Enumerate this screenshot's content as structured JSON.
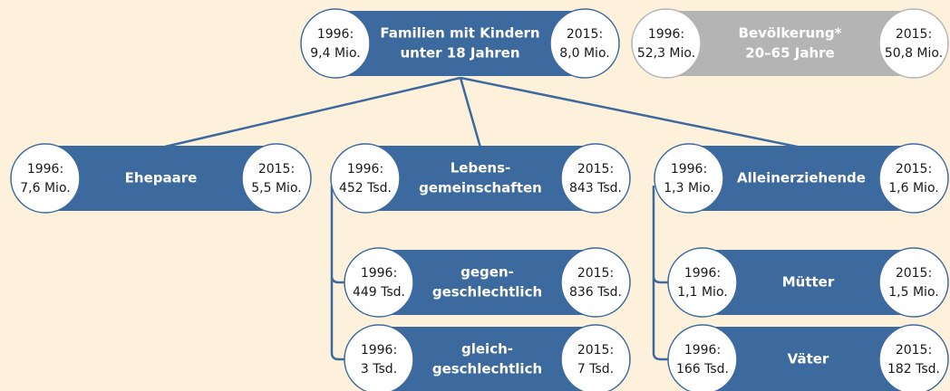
{
  "nodes": [
    {
      "label": [
        "Familien mit Kindern",
        "unter 18 Jahren"
      ],
      "left": {
        "year": "1996:",
        "value": "9,4 Mio."
      },
      "right": {
        "year": "2015:",
        "value": "8,0 Mio."
      }
    },
    {
      "label": [
        "Bevölkerung*",
        "20–65 Jahre"
      ],
      "left": {
        "year": "1996:",
        "value": "52,3 Mio."
      },
      "right": {
        "year": "2015:",
        "value": "50,8 Mio."
      }
    },
    {
      "label": [
        "Ehepaare"
      ],
      "left": {
        "year": "1996:",
        "value": "7,6 Mio."
      },
      "right": {
        "year": "2015:",
        "value": "5,5 Mio."
      }
    },
    {
      "label": [
        "Lebens-",
        "gemeinschaften"
      ],
      "left": {
        "year": "1996:",
        "value": "452 Tsd."
      },
      "right": {
        "year": "2015:",
        "value": "843 Tsd."
      }
    },
    {
      "label": [
        "Alleinerziehende"
      ],
      "left": {
        "year": "1996:",
        "value": "1,3 Mio."
      },
      "right": {
        "year": "2015:",
        "value": "1,6 Mio."
      }
    },
    {
      "label": [
        "gegen-",
        "geschlechtlich"
      ],
      "left": {
        "year": "1996:",
        "value": "449 Tsd."
      },
      "right": {
        "year": "2015:",
        "value": "836 Tsd."
      }
    },
    {
      "label": [
        "gleich-",
        "geschlechtlich"
      ],
      "left": {
        "year": "1996:",
        "value": "3 Tsd."
      },
      "right": {
        "year": "2015:",
        "value": "7 Tsd."
      }
    },
    {
      "label": [
        "Mütter"
      ],
      "left": {
        "year": "1996:",
        "value": "1,1 Mio."
      },
      "right": {
        "year": "2015:",
        "value": "1,5 Mio."
      }
    },
    {
      "label": [
        "Väter"
      ],
      "left": {
        "year": "1996:",
        "value": "166 Tsd."
      },
      "right": {
        "year": "2015:",
        "value": "182 Tsd."
      }
    }
  ]
}
